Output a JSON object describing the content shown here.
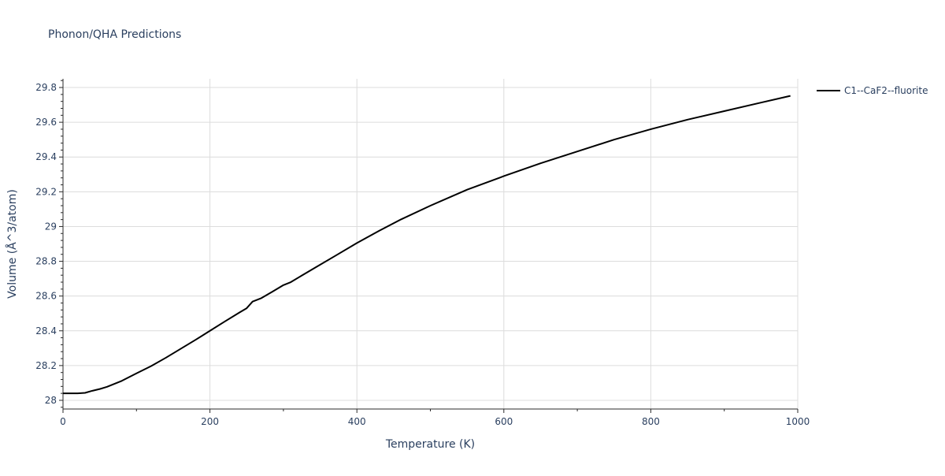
{
  "chart_data": {
    "type": "line",
    "title": "Phonon/QHA Predictions",
    "xlabel": "Temperature (K)",
    "ylabel": "Volume (Å^3/atom)",
    "xlim": [
      0,
      1000
    ],
    "ylim": [
      27.95,
      29.85
    ],
    "x_ticks": [
      0,
      200,
      400,
      600,
      800,
      1000
    ],
    "x_tick_labels": [
      "0",
      "200",
      "400",
      "600",
      "800",
      "1000"
    ],
    "y_ticks": [
      28,
      28.2,
      28.4,
      28.6,
      28.8,
      29,
      29.2,
      29.4,
      29.6,
      29.8
    ],
    "y_tick_labels": [
      "28",
      "28.2",
      "28.4",
      "28.6",
      "28.8",
      "29",
      "29.2",
      "29.4",
      "29.6",
      "29.8"
    ],
    "grid": true,
    "legend_position": "top-right",
    "series": [
      {
        "name": "C1--CaF2--fluorite",
        "color": "#000000",
        "x": [
          0,
          10,
          20,
          30,
          40,
          50,
          60,
          70,
          80,
          100,
          120,
          140,
          160,
          180,
          200,
          220,
          240,
          250,
          258,
          270,
          285,
          300,
          310,
          325,
          345,
          370,
          400,
          430,
          460,
          500,
          550,
          600,
          650,
          700,
          750,
          800,
          850,
          900,
          950,
          990
        ],
        "y": [
          28.04,
          28.04,
          28.04,
          28.043,
          28.055,
          28.065,
          28.078,
          28.095,
          28.112,
          28.155,
          28.197,
          28.245,
          28.296,
          28.347,
          28.4,
          28.453,
          28.505,
          28.53,
          28.568,
          28.588,
          28.625,
          28.663,
          28.68,
          28.718,
          28.768,
          28.83,
          28.905,
          28.975,
          29.041,
          29.12,
          29.212,
          29.29,
          29.364,
          29.432,
          29.5,
          29.56,
          29.615,
          29.664,
          29.713,
          29.752
        ]
      }
    ]
  }
}
